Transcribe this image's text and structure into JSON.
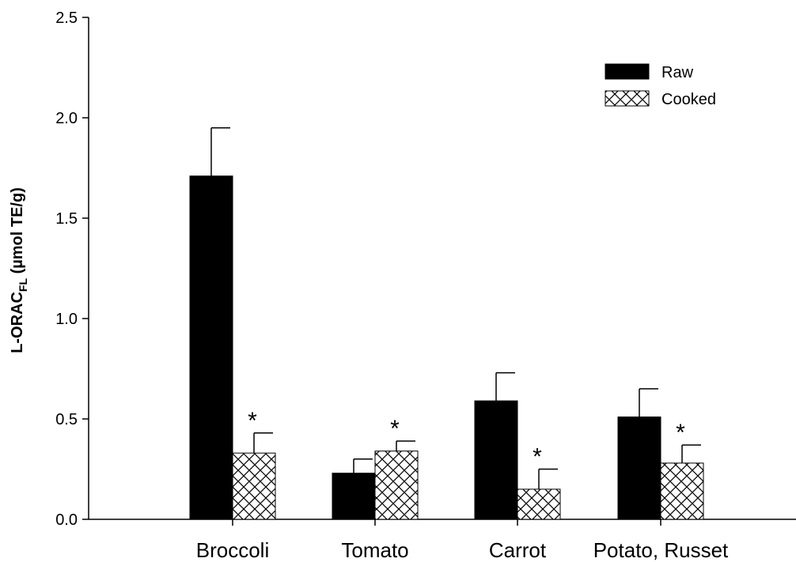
{
  "chart_data": {
    "type": "bar",
    "ylabel_main": "L-ORAC",
    "ylabel_sub": "FL",
    "ylabel_unit": " (µmol TE/g)",
    "categories": [
      "Broccoli",
      "Tomato",
      "Carrot",
      "Potato, Russet"
    ],
    "ylim": [
      0,
      2.5
    ],
    "yticks": [
      "0.0",
      "0.5",
      "1.0",
      "1.5",
      "2.0",
      "2.5"
    ],
    "ytick_values": [
      0,
      0.5,
      1.0,
      1.5,
      2.0,
      2.5
    ],
    "series": [
      {
        "name": "Raw",
        "values": [
          1.71,
          0.23,
          0.59,
          0.51
        ],
        "errors": [
          0.24,
          0.07,
          0.14,
          0.14
        ],
        "fill": "#000000",
        "pattern": "solid",
        "marks": [
          "",
          "",
          "",
          ""
        ]
      },
      {
        "name": "Cooked",
        "values": [
          0.33,
          0.34,
          0.15,
          0.28
        ],
        "errors": [
          0.1,
          0.05,
          0.1,
          0.09
        ],
        "fill": "#ffffff",
        "pattern": "crosshatch",
        "marks": [
          "*",
          "*",
          "*",
          "*"
        ]
      }
    ],
    "legend_position": "top-right",
    "grid": false
  }
}
